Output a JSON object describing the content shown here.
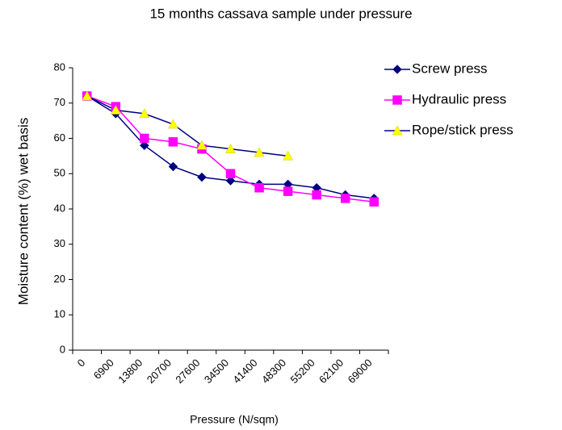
{
  "chart_data": {
    "type": "line",
    "title": "15 months cassava sample under pressure",
    "x_label": "Pressure (N/sqm)",
    "y_label": "Moisture content (%) wet basis",
    "categories": [
      0,
      6900,
      13800,
      20700,
      27600,
      34500,
      41400,
      48300,
      55200,
      62100,
      69000
    ],
    "series": [
      {
        "name": "Screw press",
        "color": "#000080",
        "line_color": "#000080",
        "marker": "diamond",
        "values": [
          72,
          67,
          58,
          52,
          49,
          48,
          47,
          47,
          46,
          44,
          43
        ]
      },
      {
        "name": "Hydraulic press",
        "color": "#ff00ff",
        "line_color": "#ff00ff",
        "marker": "square",
        "values": [
          72,
          69,
          60,
          59,
          57,
          50,
          46,
          45,
          44,
          43,
          42
        ]
      },
      {
        "name": "Rope/stick press",
        "color": "#ffff00",
        "line_color": "#000080",
        "marker": "triangle",
        "values": [
          72,
          68,
          67,
          64,
          58,
          57,
          56,
          55,
          null,
          null,
          null
        ]
      }
    ],
    "ylim": [
      0,
      80
    ],
    "yticks": [
      0,
      10,
      20,
      30,
      40,
      50,
      60,
      70,
      80
    ],
    "grid": false,
    "legend": "right"
  }
}
